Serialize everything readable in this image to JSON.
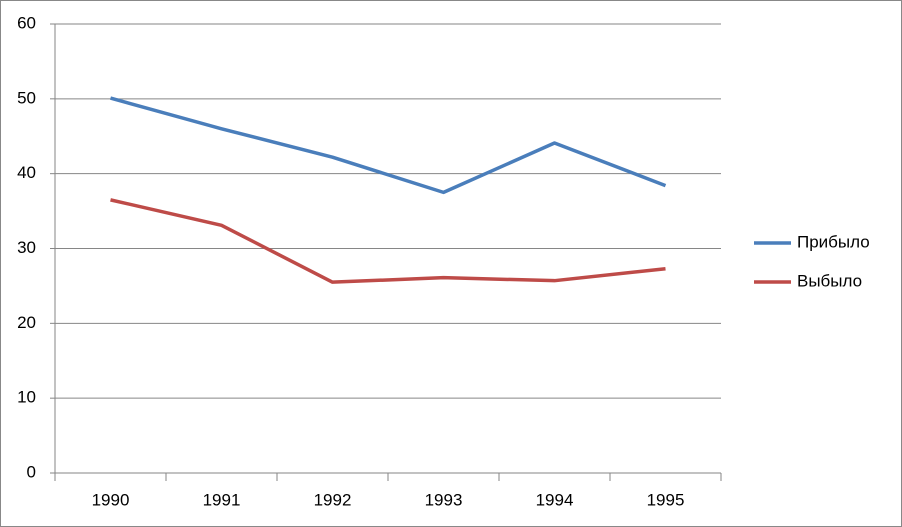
{
  "chart_data": {
    "type": "line",
    "categories": [
      "1990",
      "1991",
      "1992",
      "1993",
      "1994",
      "1995"
    ],
    "series": [
      {
        "name": "Прибыло",
        "color": "#4a7ebb",
        "values": [
          50.1,
          46.0,
          42.2,
          37.5,
          44.1,
          38.4
        ]
      },
      {
        "name": "Выбыло",
        "color": "#be4b48",
        "values": [
          36.5,
          33.1,
          25.5,
          26.1,
          25.7,
          27.3
        ]
      }
    ],
    "ylim": [
      0,
      60
    ],
    "yticks": [
      0,
      10,
      20,
      30,
      40,
      50,
      60
    ],
    "grid": true,
    "legend": "right"
  }
}
